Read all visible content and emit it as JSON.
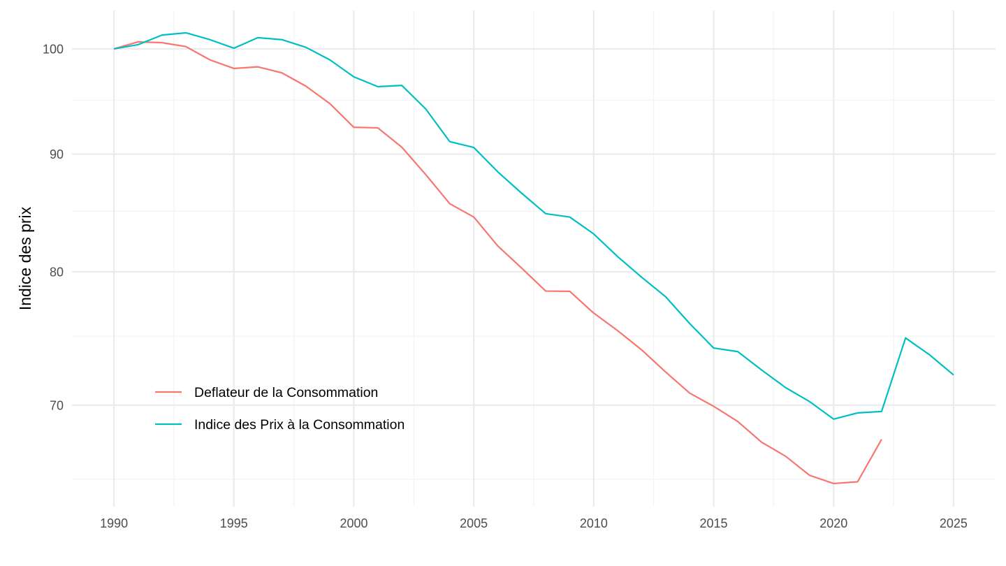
{
  "chart_data": {
    "type": "line",
    "title": "",
    "xlabel": "",
    "ylabel": "Indice des prix",
    "y_scale": "log",
    "xlim": [
      1988.25,
      2026.75
    ],
    "ylim": [
      63.24,
      103.92
    ],
    "x_ticks": [
      1990,
      1995,
      2000,
      2005,
      2010,
      2015,
      2020,
      2025
    ],
    "x_minor_ticks": [
      1992.5,
      1997.5,
      2002.5,
      2007.5,
      2012.5,
      2017.5,
      2022.5
    ],
    "y_ticks": [
      70,
      80,
      90,
      100
    ],
    "y_minor_ticks": [
      65,
      75,
      85,
      95
    ],
    "grid": true,
    "legend": {
      "placement": "bottom-left-inside",
      "position": "inside"
    },
    "series": [
      {
        "name": "Deflateur de la Consommation",
        "color": "#F8766D",
        "x": [
          1990,
          1991,
          1992,
          1993,
          1994,
          1995,
          1996,
          1997,
          1998,
          1999,
          2000,
          2001,
          2002,
          2003,
          2004,
          2005,
          2006,
          2007,
          2008,
          2009,
          2010,
          2011,
          2012,
          2013,
          2014,
          2015,
          2016,
          2017,
          2018,
          2019,
          2020,
          2021,
          2022
        ],
        "values": [
          100.0,
          100.7,
          100.63,
          100.23,
          98.91,
          98.06,
          98.22,
          97.63,
          96.34,
          94.67,
          92.45,
          92.4,
          90.63,
          88.17,
          85.64,
          84.51,
          82.1,
          80.29,
          78.47,
          78.45,
          76.76,
          75.42,
          73.98,
          72.36,
          70.85,
          69.92,
          68.87,
          67.45,
          66.51,
          65.25,
          64.72,
          64.83,
          67.64
        ]
      },
      {
        "name": "Indice des Prix à la Consommation",
        "color": "#00BFC4",
        "x": [
          1990,
          1991,
          1992,
          1993,
          1994,
          1995,
          1996,
          1997,
          1998,
          1999,
          2000,
          2001,
          2002,
          2003,
          2004,
          2005,
          2006,
          2007,
          2008,
          2009,
          2010,
          2011,
          2012,
          2013,
          2014,
          2015,
          2016,
          2017,
          2018,
          2019,
          2020,
          2021,
          2022,
          2023,
          2024,
          2025
        ],
        "values": [
          100.0,
          100.42,
          101.39,
          101.62,
          100.93,
          100.07,
          101.13,
          100.93,
          100.16,
          98.91,
          97.24,
          96.29,
          96.41,
          94.16,
          91.13,
          90.6,
          88.42,
          86.54,
          84.79,
          84.51,
          83.09,
          81.22,
          79.56,
          78.02,
          75.96,
          74.12,
          73.86,
          72.51,
          71.24,
          70.25,
          69.03,
          69.46,
          69.56,
          74.87,
          73.62,
          72.15
        ]
      }
    ]
  }
}
